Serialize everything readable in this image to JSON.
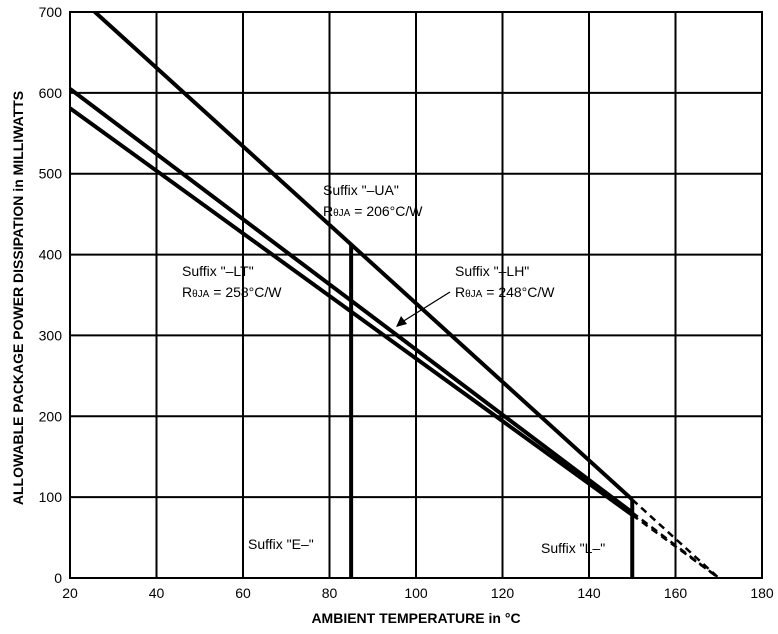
{
  "chart_data": {
    "type": "line",
    "xlabel": "AMBIENT TEMPERATURE in °C",
    "ylabel": "ALLOWABLE PACKAGE POWER DISSIPATION in MILLIWATTS",
    "xlim": [
      20,
      180
    ],
    "ylim": [
      0,
      700
    ],
    "x_ticks": [
      20,
      40,
      60,
      80,
      100,
      120,
      140,
      160,
      180
    ],
    "y_ticks": [
      0,
      100,
      200,
      300,
      400,
      500,
      600,
      700
    ],
    "grid": true,
    "series": [
      {
        "name": "Suffix \"–UA\"",
        "x": [
          20,
          150
        ],
        "y": [
          728,
          97
        ],
        "dashed_x": [
          150,
          170
        ],
        "dashed_y": [
          97,
          0
        ],
        "style": "solid-then-dashed"
      },
      {
        "name": "Suffix \"–LH\"",
        "x": [
          20,
          150
        ],
        "y": [
          605,
          81
        ],
        "dashed_x": [
          150,
          170
        ],
        "dashed_y": [
          81,
          0
        ],
        "style": "solid-then-dashed"
      },
      {
        "name": "Suffix \"–LT\"",
        "x": [
          20,
          150
        ],
        "y": [
          581,
          78
        ],
        "dashed_x": [
          150,
          170
        ],
        "dashed_y": [
          78,
          0
        ],
        "style": "solid-then-dashed"
      }
    ],
    "vertical_markers": [
      {
        "x": 85,
        "y_top": 412,
        "label": "Suffix \"E–\""
      },
      {
        "x": 150,
        "y_top": 97,
        "label": "Suffix \"L–\""
      }
    ],
    "annotations": [
      {
        "line1": "Suffix \"–UA\"",
        "r_main": "R",
        "r_sub": "θJA",
        "r_value": " = 206°C/W"
      },
      {
        "line1": "Suffix \"–LT\"",
        "r_main": "R",
        "r_sub": "θJA",
        "r_value": " = 258°C/W"
      },
      {
        "line1": "Suffix \"–LH\"",
        "r_main": "R",
        "r_sub": "θJA",
        "r_value": " = 248°C/W"
      }
    ]
  }
}
